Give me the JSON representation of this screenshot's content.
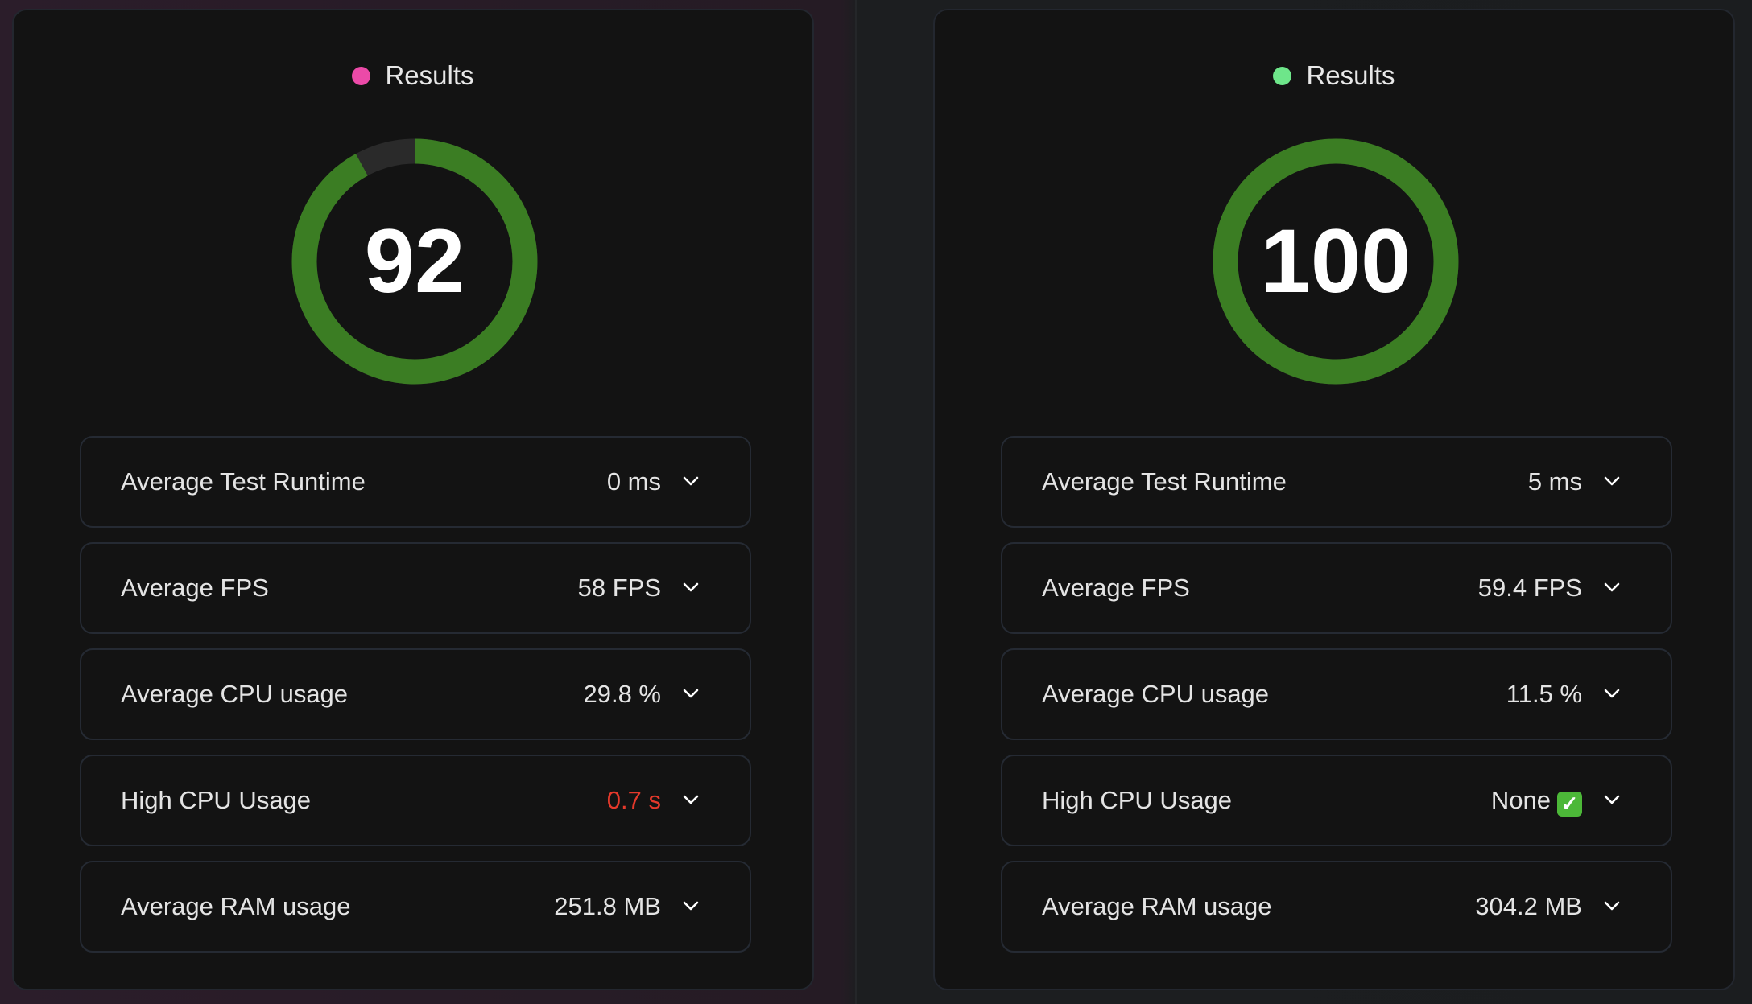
{
  "colors": {
    "ring_fill": "#3b7d23",
    "ring_track": "#2a2a2a",
    "bad": "#e5392b"
  },
  "panels": [
    {
      "title": "Results",
      "dot_color": "#ec4aa8",
      "score": "92",
      "score_value": 92,
      "metrics": [
        {
          "label": "Average Test Runtime",
          "value": "0 ms",
          "status": "normal"
        },
        {
          "label": "Average FPS",
          "value": "58 FPS",
          "status": "normal"
        },
        {
          "label": "Average CPU usage",
          "value": "29.8 %",
          "status": "normal"
        },
        {
          "label": "High CPU Usage",
          "value": "0.7 s",
          "status": "bad"
        },
        {
          "label": "Average RAM usage",
          "value": "251.8 MB",
          "status": "normal"
        }
      ]
    },
    {
      "title": "Results",
      "dot_color": "#6ee68a",
      "score": "100",
      "score_value": 100,
      "metrics": [
        {
          "label": "Average Test Runtime",
          "value": "5 ms",
          "status": "normal"
        },
        {
          "label": "Average FPS",
          "value": "59.4 FPS",
          "status": "normal"
        },
        {
          "label": "Average CPU usage",
          "value": "11.5 %",
          "status": "normal"
        },
        {
          "label": "High CPU Usage",
          "value": "None",
          "status": "good",
          "icon": "check-mark-emoji"
        },
        {
          "label": "Average RAM usage",
          "value": "304.2 MB",
          "status": "normal"
        }
      ]
    }
  ]
}
